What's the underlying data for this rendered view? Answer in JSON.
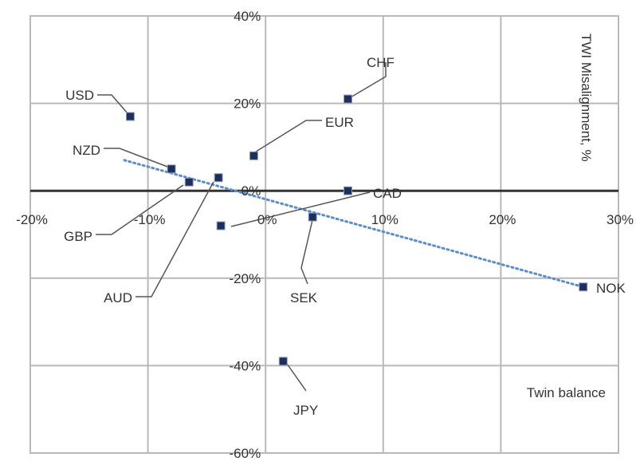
{
  "chart_data": {
    "type": "scatter",
    "xlabel": "Twin balance",
    "ylabel": "TWI Misalignment, %",
    "xlim": [
      -20,
      30
    ],
    "ylim": [
      -60,
      40
    ],
    "xticks": [
      -20,
      -10,
      0,
      10,
      20,
      30
    ],
    "yticks": [
      -60,
      -40,
      -20,
      0,
      20,
      40
    ],
    "x_tick_labels": [
      "-20%",
      "-10%",
      "0%",
      "10%",
      "20%",
      "30%"
    ],
    "y_tick_labels": [
      "-60%",
      "-40%",
      "-20%",
      "0%",
      "20%",
      "40%"
    ],
    "grid": true,
    "trendline": {
      "style": "dotted",
      "color": "#5b8ec9",
      "from": [
        -12,
        7
      ],
      "to": [
        27,
        -22
      ]
    },
    "colors": {
      "marker": "#1f2f5a",
      "grid": "#b9b9b9",
      "zero_line": "#333333",
      "leader": "#555555"
    },
    "points": [
      {
        "label": "USD",
        "x": -11.5,
        "y": 17
      },
      {
        "label": "NZD",
        "x": -8,
        "y": 5
      },
      {
        "label": "GBP",
        "x": -6.5,
        "y": 2
      },
      {
        "label": "AUD",
        "x": -4,
        "y": 3
      },
      {
        "label": "EUR",
        "x": -1,
        "y": 8
      },
      {
        "label": "CHF",
        "x": 7,
        "y": 21
      },
      {
        "label": "CAD",
        "x": 7,
        "y": 0
      },
      {
        "label": "SEK",
        "x": 4,
        "y": -6
      },
      {
        "label": "JPY",
        "x": 1.5,
        "y": -39
      },
      {
        "label": "NOK",
        "x": 27,
        "y": -22
      },
      {
        "label": "",
        "x": -3.8,
        "y": -8
      }
    ]
  }
}
